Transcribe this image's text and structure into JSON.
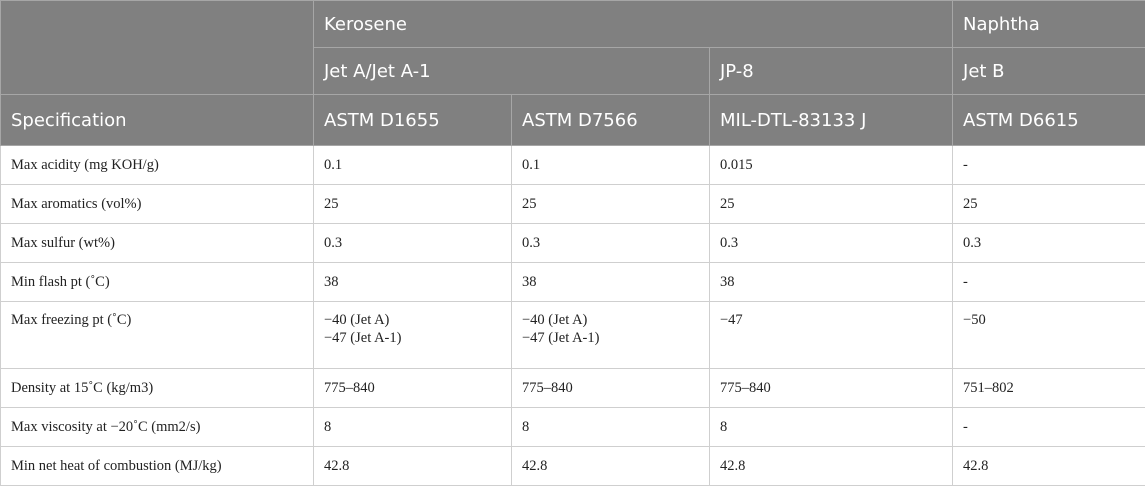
{
  "header": {
    "row1": [
      "Kerosene",
      "Naphtha"
    ],
    "row2": [
      "Jet A/Jet A-1",
      "JP-8",
      "Jet B"
    ],
    "row3": [
      "Specification",
      "ASTM D1655",
      "ASTM D7566",
      "MIL-DTL-83133 J",
      "ASTM D6615"
    ]
  },
  "rows": [
    {
      "label": "Max acidity (mg KOH/g)",
      "values": [
        [
          "0.1"
        ],
        [
          "0.1"
        ],
        [
          "0.015"
        ],
        [
          "-"
        ]
      ]
    },
    {
      "label": "Max aromatics (vol%)",
      "values": [
        [
          "25"
        ],
        [
          "25"
        ],
        [
          "25"
        ],
        [
          "25"
        ]
      ]
    },
    {
      "label": "Max sulfur (wt%)",
      "values": [
        [
          "0.3"
        ],
        [
          "0.3"
        ],
        [
          "0.3"
        ],
        [
          "0.3"
        ]
      ]
    },
    {
      "label": "Min flash pt (˚C)",
      "values": [
        [
          "38"
        ],
        [
          "38"
        ],
        [
          "38"
        ],
        [
          "-"
        ]
      ]
    },
    {
      "label": "Max freezing pt (˚C)",
      "values": [
        [
          "−40 (Jet A)",
          "−47 (Jet A-1)"
        ],
        [
          "−40 (Jet A)",
          "−47 (Jet A-1)"
        ],
        [
          "−47"
        ],
        [
          "−50"
        ]
      ]
    },
    {
      "label": "Density at 15˚C (kg/m3)",
      "values": [
        [
          "775–840"
        ],
        [
          "775–840"
        ],
        [
          "775–840"
        ],
        [
          "751–802"
        ]
      ]
    },
    {
      "label": "Max viscosity at −20˚C (mm2/s)",
      "values": [
        [
          "8"
        ],
        [
          "8"
        ],
        [
          "8"
        ],
        [
          "-"
        ]
      ]
    },
    {
      "label": "Min net heat of combustion (MJ/kg)",
      "values": [
        [
          "42.8"
        ],
        [
          "42.8"
        ],
        [
          "42.8"
        ],
        [
          "42.8"
        ]
      ]
    }
  ]
}
